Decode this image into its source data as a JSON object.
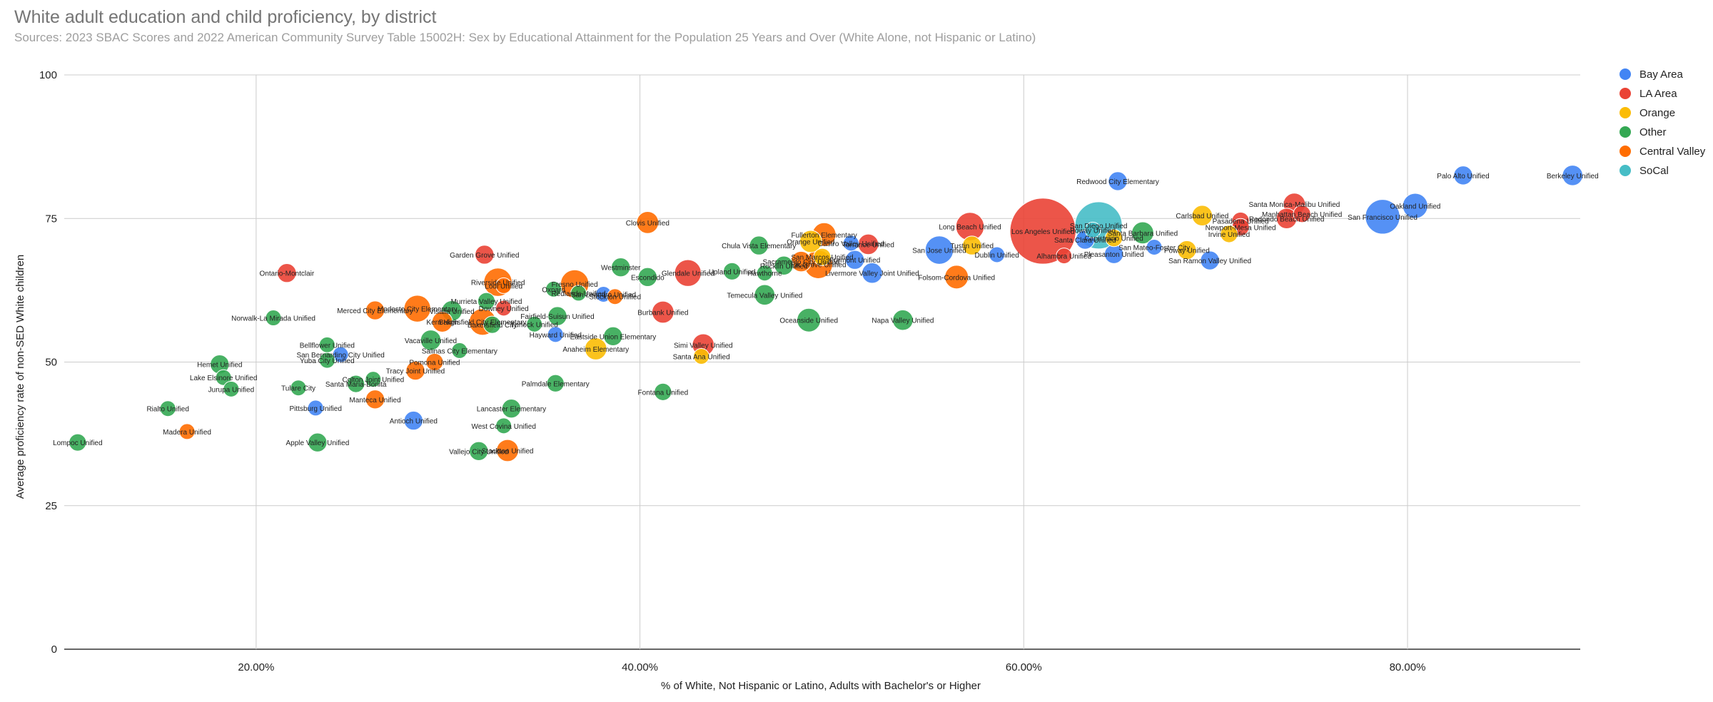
{
  "chart_data": {
    "type": "scatter",
    "title": "White adult education and child proficiency, by district",
    "subtitle": "Sources: 2023 SBAC Scores and 2022 American Community Survey Table 15002H: Sex by Educational Attainment for the Population 25 Years and Over (White Alone, not Hispanic or Latino)",
    "xlabel": "% of White, Not Hispanic or Latino, Adults with Bachelor's or Higher",
    "ylabel": "Average proficiency rate of non-SED White children",
    "xlim": [
      0.1,
      0.89
    ],
    "ylim": [
      0,
      100
    ],
    "x_ticks": [
      0.2,
      0.4,
      0.6,
      0.8
    ],
    "x_tick_labels": [
      "20.00%",
      "40.00%",
      "60.00%",
      "80.00%"
    ],
    "y_ticks": [
      0,
      25,
      50,
      75,
      100
    ],
    "y_tick_labels": [
      "0",
      "25",
      "50",
      "75",
      "100"
    ],
    "grid": true,
    "legend_position": "right",
    "groups": [
      {
        "name": "Bay Area",
        "color": "#4285F4"
      },
      {
        "name": "LA Area",
        "color": "#EA4335"
      },
      {
        "name": "Orange",
        "color": "#FBBC04"
      },
      {
        "name": "Other",
        "color": "#34A853"
      },
      {
        "name": "Central Valley",
        "color": "#FF6D01"
      },
      {
        "name": "SoCal",
        "color": "#46BDC6"
      }
    ],
    "points": [
      {
        "label": "Berkeley Unified",
        "x": 0.886,
        "y": 82.5,
        "group": "Bay Area",
        "size": 1.3
      },
      {
        "label": "Palo Alto Unified",
        "x": 0.829,
        "y": 82.5,
        "group": "Bay Area",
        "size": 1.2
      },
      {
        "label": "Oakland Unified",
        "x": 0.804,
        "y": 77.2,
        "group": "Bay Area",
        "size": 1.6
      },
      {
        "label": "San Francisco Unified",
        "x": 0.787,
        "y": 75.3,
        "group": "Bay Area",
        "size": 2.2
      },
      {
        "label": "Redwood City Elementary",
        "x": 0.649,
        "y": 81.5,
        "group": "Bay Area",
        "size": 1.2
      },
      {
        "label": "San Jose Unified",
        "x": 0.556,
        "y": 69.5,
        "group": "Bay Area",
        "size": 1.8
      },
      {
        "label": "San Ramon Valley Unified",
        "x": 0.697,
        "y": 67.7,
        "group": "Bay Area",
        "size": 1.2
      },
      {
        "label": "Pleasanton Unified",
        "x": 0.647,
        "y": 68.8,
        "group": "Bay Area",
        "size": 1.2
      },
      {
        "label": "Dublin Unified",
        "x": 0.586,
        "y": 68.7,
        "group": "Bay Area",
        "size": 1.0
      },
      {
        "label": "Livermore Valley Joint Unified",
        "x": 0.521,
        "y": 65.5,
        "group": "Bay Area",
        "size": 1.3
      },
      {
        "label": "Fremont Unified",
        "x": 0.512,
        "y": 67.8,
        "group": "Bay Area",
        "size": 1.2
      },
      {
        "label": "Castro Valley Unified",
        "x": 0.51,
        "y": 70.7,
        "group": "Bay Area",
        "size": 1.0
      },
      {
        "label": "Hayward Unified",
        "x": 0.356,
        "y": 54.8,
        "group": "Bay Area",
        "size": 1.0
      },
      {
        "label": "San Leandro Unified",
        "x": 0.381,
        "y": 61.8,
        "group": "Bay Area",
        "size": 1.0
      },
      {
        "label": "San Bernardino City Unified",
        "x": 0.244,
        "y": 51.3,
        "group": "Bay Area",
        "size": 1.0
      },
      {
        "label": "Pittsburg Unified",
        "x": 0.231,
        "y": 42.0,
        "group": "Bay Area",
        "size": 1.0
      },
      {
        "label": "Antioch Unified",
        "x": 0.282,
        "y": 39.8,
        "group": "Bay Area",
        "size": 1.2
      },
      {
        "label": "Santa Clara Unified",
        "x": 0.632,
        "y": 71.3,
        "group": "Bay Area",
        "size": 1.2
      },
      {
        "label": "San Mateo-Foster City",
        "x": 0.668,
        "y": 70.0,
        "group": "Bay Area",
        "size": 1.0
      },
      {
        "label": "Santa Monica-Malibu Unified",
        "x": 0.741,
        "y": 77.5,
        "group": "LA Area",
        "size": 1.4
      },
      {
        "label": "Redondo Beach Unified",
        "x": 0.737,
        "y": 75.0,
        "group": "LA Area",
        "size": 1.3
      },
      {
        "label": "Manhattan Beach Unified",
        "x": 0.745,
        "y": 75.8,
        "group": "LA Area",
        "size": 1.1
      },
      {
        "label": "Pasadena Unified",
        "x": 0.713,
        "y": 74.6,
        "group": "LA Area",
        "size": 1.1
      },
      {
        "label": "Los Angeles Unified",
        "x": 0.61,
        "y": 72.8,
        "group": "LA Area",
        "size": 4.2
      },
      {
        "label": "Long Beach Unified",
        "x": 0.572,
        "y": 73.6,
        "group": "LA Area",
        "size": 1.8
      },
      {
        "label": "Alhambra Unified",
        "x": 0.621,
        "y": 68.5,
        "group": "LA Area",
        "size": 1.0
      },
      {
        "label": "Torrance Unified",
        "x": 0.519,
        "y": 70.5,
        "group": "LA Area",
        "size": 1.3
      },
      {
        "label": "Glendale Unified",
        "x": 0.425,
        "y": 65.5,
        "group": "LA Area",
        "size": 1.7
      },
      {
        "label": "Burbank Unified",
        "x": 0.412,
        "y": 58.7,
        "group": "LA Area",
        "size": 1.4
      },
      {
        "label": "Simi Valley Unified",
        "x": 0.433,
        "y": 53.0,
        "group": "LA Area",
        "size": 1.4
      },
      {
        "label": "Downey Unified",
        "x": 0.329,
        "y": 59.4,
        "group": "LA Area",
        "size": 1.0
      },
      {
        "label": "Garden Grove Unified",
        "x": 0.319,
        "y": 68.7,
        "group": "LA Area",
        "size": 1.2
      },
      {
        "label": "Ontario-Montclair",
        "x": 0.216,
        "y": 65.5,
        "group": "LA Area",
        "size": 1.2
      },
      {
        "label": "Newport-Mesa Unified",
        "x": 0.713,
        "y": 73.5,
        "group": "LA Area",
        "size": 1.1
      },
      {
        "label": "Carlsbad Unified",
        "x": 0.693,
        "y": 75.5,
        "group": "Orange",
        "size": 1.3
      },
      {
        "label": "Irvine Unified",
        "x": 0.707,
        "y": 72.3,
        "group": "Orange",
        "size": 1.1
      },
      {
        "label": "Tustin Unified",
        "x": 0.573,
        "y": 70.3,
        "group": "Orange",
        "size": 1.2
      },
      {
        "label": "Capistrano Unified",
        "x": 0.647,
        "y": 71.6,
        "group": "Orange",
        "size": 1.1
      },
      {
        "label": "Orange Unified",
        "x": 0.489,
        "y": 71.0,
        "group": "Orange",
        "size": 1.4
      },
      {
        "label": "San Marcos Unified",
        "x": 0.495,
        "y": 68.3,
        "group": "Orange",
        "size": 1.1
      },
      {
        "label": "Anaheim Elementary",
        "x": 0.377,
        "y": 52.3,
        "group": "Orange",
        "size": 1.4
      },
      {
        "label": "Santa Ana Unified",
        "x": 0.432,
        "y": 51.0,
        "group": "Orange",
        "size": 1.0
      },
      {
        "label": "Poway Unified",
        "x": 0.685,
        "y": 69.5,
        "group": "Orange",
        "size": 1.2
      },
      {
        "label": "Chula Vista Elementary",
        "x": 0.462,
        "y": 70.3,
        "group": "Other",
        "size": 1.2
      },
      {
        "label": "Santa Barbara Unified",
        "x": 0.662,
        "y": 72.5,
        "group": "Other",
        "size": 1.4
      },
      {
        "label": "Temecula Valley Unified",
        "x": 0.465,
        "y": 61.7,
        "group": "Other",
        "size": 1.3
      },
      {
        "label": "Oceanside Unified",
        "x": 0.488,
        "y": 57.3,
        "group": "Other",
        "size": 1.5
      },
      {
        "label": "Napa Valley Unified",
        "x": 0.537,
        "y": 57.3,
        "group": "Other",
        "size": 1.3
      },
      {
        "label": "Rocklin Unified",
        "x": 0.475,
        "y": 66.8,
        "group": "Other",
        "size": 1.2
      },
      {
        "label": "Hawthorne",
        "x": 0.465,
        "y": 65.5,
        "group": "Other",
        "size": 1.0
      },
      {
        "label": "Upland Unified",
        "x": 0.448,
        "y": 65.8,
        "group": "Other",
        "size": 1.1
      },
      {
        "label": "Westminster",
        "x": 0.39,
        "y": 66.5,
        "group": "Other",
        "size": 1.2
      },
      {
        "label": "Escondido",
        "x": 0.404,
        "y": 64.8,
        "group": "Other",
        "size": 1.2
      },
      {
        "label": "Oxnard",
        "x": 0.355,
        "y": 62.7,
        "group": "Other",
        "size": 1.0
      },
      {
        "label": "Fairfield-Suisun Unified",
        "x": 0.357,
        "y": 58.0,
        "group": "Other",
        "size": 1.2
      },
      {
        "label": "Murrieta Valley Unified",
        "x": 0.32,
        "y": 60.6,
        "group": "Other",
        "size": 1.1
      },
      {
        "label": "Visalia Unified",
        "x": 0.302,
        "y": 58.9,
        "group": "Other",
        "size": 1.3
      },
      {
        "label": "Vacaville Unified",
        "x": 0.291,
        "y": 53.8,
        "group": "Other",
        "size": 1.3
      },
      {
        "label": "Salinas City Elementary",
        "x": 0.306,
        "y": 52.0,
        "group": "Other",
        "size": 1.0
      },
      {
        "label": "Norwalk-La Mirada Unified",
        "x": 0.209,
        "y": 57.7,
        "group": "Other",
        "size": 1.0
      },
      {
        "label": "Hemet Unified",
        "x": 0.181,
        "y": 49.6,
        "group": "Other",
        "size": 1.2
      },
      {
        "label": "Lake Elsinore Unified",
        "x": 0.183,
        "y": 47.3,
        "group": "Other",
        "size": 1.0
      },
      {
        "label": "Jurupa Unified",
        "x": 0.187,
        "y": 45.3,
        "group": "Other",
        "size": 1.0
      },
      {
        "label": "Rialto Unified",
        "x": 0.154,
        "y": 41.9,
        "group": "Other",
        "size": 1.0
      },
      {
        "label": "Lompoc Unified",
        "x": 0.107,
        "y": 36.0,
        "group": "Other",
        "size": 1.1
      },
      {
        "label": "Tulare City",
        "x": 0.222,
        "y": 45.5,
        "group": "Other",
        "size": 1.0
      },
      {
        "label": "Bellflower Unified",
        "x": 0.237,
        "y": 53.0,
        "group": "Other",
        "size": 1.0
      },
      {
        "label": "Yuba City Unified",
        "x": 0.237,
        "y": 50.3,
        "group": "Other",
        "size": 1.0
      },
      {
        "label": "Santa Maria-Bonita",
        "x": 0.252,
        "y": 46.2,
        "group": "Other",
        "size": 1.1
      },
      {
        "label": "Colton Joint Unified",
        "x": 0.261,
        "y": 47.0,
        "group": "Other",
        "size": 1.0
      },
      {
        "label": "Apple Valley Unified",
        "x": 0.232,
        "y": 36.0,
        "group": "Other",
        "size": 1.2
      },
      {
        "label": "Lancaster Elementary",
        "x": 0.333,
        "y": 41.9,
        "group": "Other",
        "size": 1.2
      },
      {
        "label": "West Covina Unified",
        "x": 0.329,
        "y": 38.9,
        "group": "Other",
        "size": 1.0
      },
      {
        "label": "Vallejo City Unified",
        "x": 0.316,
        "y": 34.5,
        "group": "Other",
        "size": 1.2
      },
      {
        "label": "Palmdale Elementary",
        "x": 0.356,
        "y": 46.3,
        "group": "Other",
        "size": 1.1
      },
      {
        "label": "Fontana Unified",
        "x": 0.412,
        "y": 44.8,
        "group": "Other",
        "size": 1.1
      },
      {
        "label": "Bakersfield City",
        "x": 0.323,
        "y": 56.5,
        "group": "Other",
        "size": 1.1
      },
      {
        "label": "Turlock Unified",
        "x": 0.345,
        "y": 56.6,
        "group": "Other",
        "size": 1.0
      },
      {
        "label": "Redlands Unified",
        "x": 0.368,
        "y": 62.0,
        "group": "Other",
        "size": 1.0
      },
      {
        "label": "Eastside Union Elementary",
        "x": 0.386,
        "y": 54.5,
        "group": "Other",
        "size": 1.2
      },
      {
        "label": "Clovis Unified",
        "x": 0.404,
        "y": 74.3,
        "group": "Central Valley",
        "size": 1.4
      },
      {
        "label": "Fullerton Elementary",
        "x": 0.496,
        "y": 72.2,
        "group": "Central Valley",
        "size": 1.5
      },
      {
        "label": "Elk Grove Unified",
        "x": 0.493,
        "y": 67.0,
        "group": "Central Valley",
        "size": 1.8
      },
      {
        "label": "Sacramento City Unified",
        "x": 0.484,
        "y": 67.5,
        "group": "Central Valley",
        "size": 1.3
      },
      {
        "label": "Folsom-Cordova Unified",
        "x": 0.565,
        "y": 64.8,
        "group": "Central Valley",
        "size": 1.5
      },
      {
        "label": "Fresno Unified",
        "x": 0.366,
        "y": 63.6,
        "group": "Central Valley",
        "size": 1.8
      },
      {
        "label": "Lodi Unified",
        "x": 0.329,
        "y": 63.3,
        "group": "Central Valley",
        "size": 1.0
      },
      {
        "label": "Stockton Unified",
        "x": 0.387,
        "y": 61.4,
        "group": "Central Valley",
        "size": 1.0
      },
      {
        "label": "Riverside Unified",
        "x": 0.326,
        "y": 63.9,
        "group": "Central Valley",
        "size": 1.8
      },
      {
        "label": "Kern High",
        "x": 0.297,
        "y": 57.0,
        "group": "Central Valley",
        "size": 1.3
      },
      {
        "label": "Modesto City Elementary",
        "x": 0.284,
        "y": 59.3,
        "group": "Central Valley",
        "size": 1.7
      },
      {
        "label": "Merced City Elementary",
        "x": 0.262,
        "y": 59.0,
        "group": "Central Valley",
        "size": 1.2
      },
      {
        "label": "Bakersfield City Elementary",
        "x": 0.318,
        "y": 57.0,
        "group": "Central Valley",
        "size": 1.7
      },
      {
        "label": "Pomona Unified",
        "x": 0.293,
        "y": 50.0,
        "group": "Central Valley",
        "size": 1.1
      },
      {
        "label": "Tracy Joint Unified",
        "x": 0.283,
        "y": 48.5,
        "group": "Central Valley",
        "size": 1.2
      },
      {
        "label": "Manteca Unified",
        "x": 0.262,
        "y": 43.5,
        "group": "Central Valley",
        "size": 1.2
      },
      {
        "label": "Madera Unified",
        "x": 0.164,
        "y": 37.9,
        "group": "Central Valley",
        "size": 1.0
      },
      {
        "label": "Stockton Unified",
        "x": 0.331,
        "y": 34.6,
        "group": "Central Valley",
        "size": 1.4
      },
      {
        "label": "San Diego Unified",
        "x": 0.639,
        "y": 73.8,
        "group": "SoCal",
        "size": 3.0
      },
      {
        "label": "Poway Unified",
        "x": 0.636,
        "y": 73.0,
        "group": "SoCal",
        "size": 1.0
      }
    ]
  }
}
